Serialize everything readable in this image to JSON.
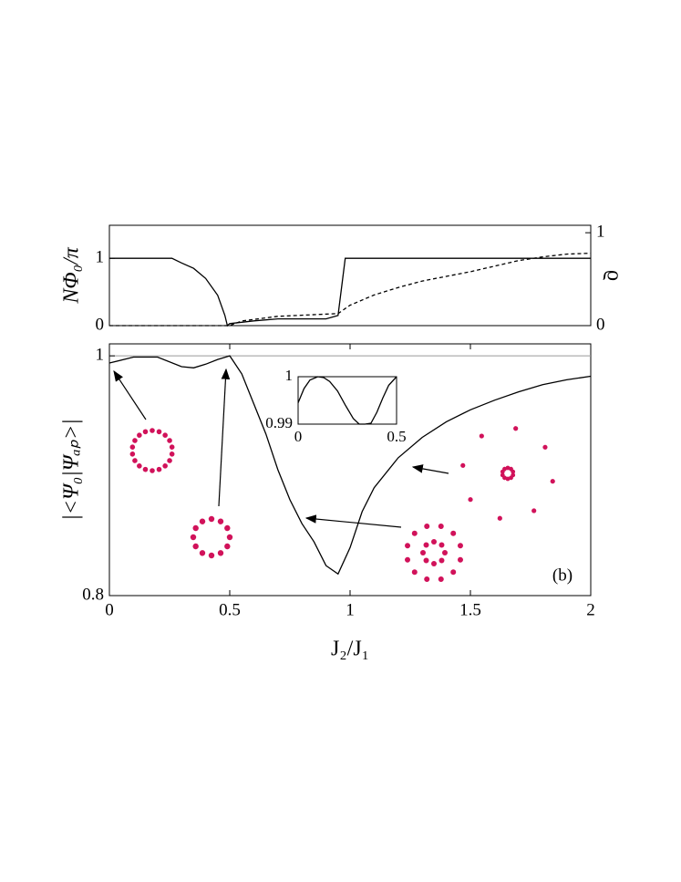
{
  "chart_data": [
    {
      "type": "line",
      "y_label": "NΦ₀/π",
      "y2_label": "ϱ",
      "xlim": [
        0,
        2
      ],
      "ylim": [
        0,
        1.49
      ],
      "yticks": [
        0,
        1
      ],
      "y2lim": [
        0,
        1.08
      ],
      "y2ticks": [
        0,
        1
      ],
      "series": [
        {
          "color": "#000000",
          "dashed": false,
          "x": [
            0,
            0.26,
            0.3,
            0.35,
            0.4,
            0.45,
            0.48,
            0.49,
            0.5,
            0.55,
            0.6,
            0.7,
            0.8,
            0.9,
            0.95,
            0.98,
            2
          ],
          "values": [
            1,
            1,
            0.93,
            0.85,
            0.7,
            0.45,
            0.15,
            0,
            0.03,
            0.05,
            0.07,
            0.1,
            0.1,
            0.1,
            0.15,
            1,
            1
          ]
        },
        {
          "color": "#000000",
          "dashed": true,
          "axis": "y2",
          "x": [
            0,
            0.5,
            0.55,
            0.7,
            0.95,
            1.0,
            1.1,
            1.2,
            1.3,
            1.4,
            1.5,
            1.6,
            1.7,
            1.8,
            1.9,
            2
          ],
          "values": [
            0,
            0,
            0.05,
            0.1,
            0.13,
            0.22,
            0.33,
            0.41,
            0.48,
            0.53,
            0.58,
            0.64,
            0.7,
            0.74,
            0.77,
            0.78
          ]
        }
      ]
    },
    {
      "type": "line",
      "x_label": "J₂/J₁",
      "y_label": "|<Ψ₀|Ψₐₚ>|",
      "annotation": "(b)",
      "xlim": [
        0,
        2
      ],
      "xticks": [
        0,
        0.5,
        1,
        1.5,
        2
      ],
      "ylim": [
        0.8,
        1.01
      ],
      "yticks": [
        0.8,
        1
      ],
      "reference_line": 1,
      "series": [
        {
          "color": "#000000",
          "dashed": false,
          "x": [
            0,
            0.1,
            0.2,
            0.3,
            0.35,
            0.4,
            0.45,
            0.5,
            0.55,
            0.6,
            0.65,
            0.7,
            0.75,
            0.8,
            0.85,
            0.9,
            0.95,
            1.0,
            1.05,
            1.1,
            1.2,
            1.3,
            1.4,
            1.5,
            1.6,
            1.7,
            1.8,
            1.9,
            2.0
          ],
          "values": [
            0.994,
            0.999,
            0.999,
            0.991,
            0.99,
            0.993,
            0.997,
            1.0,
            0.985,
            0.96,
            0.935,
            0.905,
            0.88,
            0.86,
            0.845,
            0.825,
            0.818,
            0.84,
            0.87,
            0.89,
            0.915,
            0.932,
            0.945,
            0.955,
            0.963,
            0.97,
            0.976,
            0.98,
            0.983
          ]
        }
      ]
    },
    {
      "type": "line",
      "xlim": [
        0,
        0.5
      ],
      "xticks": [
        0,
        0.5
      ],
      "ylim": [
        0.99,
        1
      ],
      "yticks": [
        0.99,
        1
      ],
      "series": [
        {
          "color": "#000000",
          "dashed": false,
          "x": [
            0,
            0.03,
            0.06,
            0.1,
            0.13,
            0.16,
            0.2,
            0.24,
            0.28,
            0.31,
            0.34,
            0.37,
            0.4,
            0.43,
            0.46,
            0.5
          ],
          "values": [
            0.9945,
            0.9975,
            0.9993,
            1.0,
            0.9998,
            0.999,
            0.997,
            0.994,
            0.9912,
            0.99,
            0.99,
            0.9902,
            0.9925,
            0.9955,
            0.9982,
            1.0
          ]
        }
      ]
    }
  ]
}
